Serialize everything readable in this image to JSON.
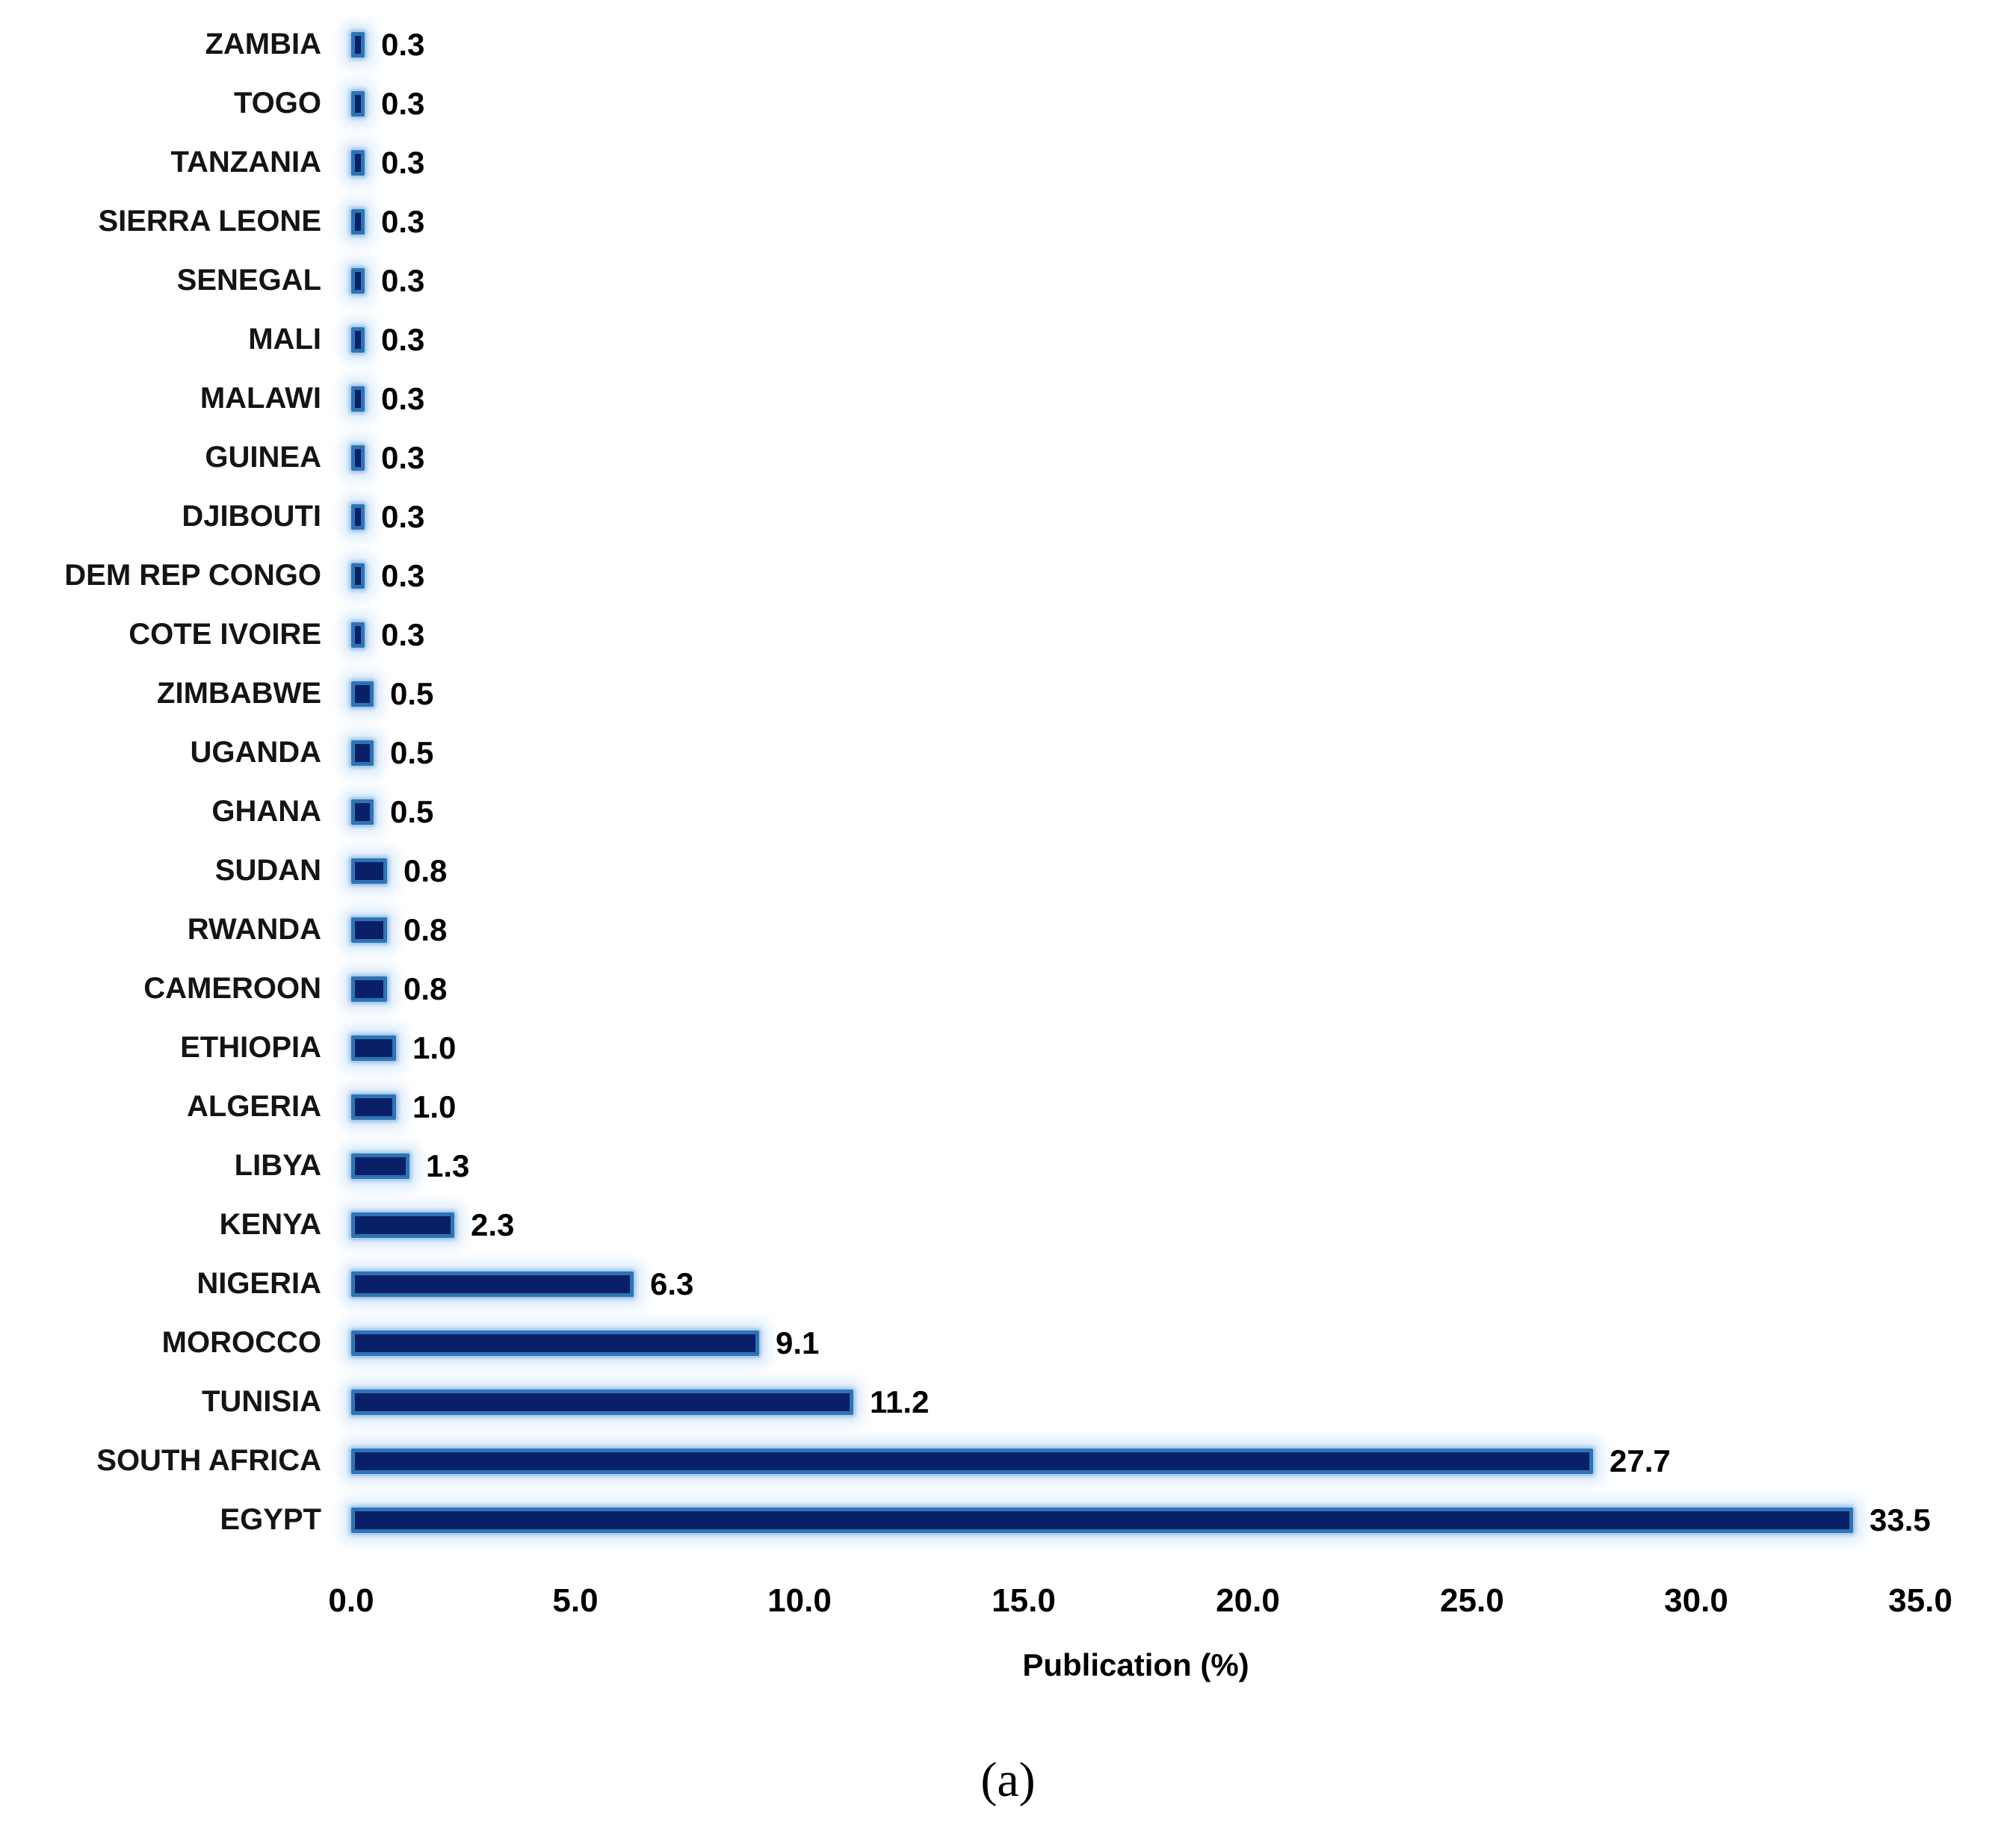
{
  "caption": "(a)",
  "chart_data": {
    "type": "bar",
    "orientation": "horizontal",
    "title": "",
    "xlabel": "Publication (%)",
    "ylabel": "",
    "xlim": [
      0,
      35
    ],
    "grid": false,
    "legend": false,
    "sort_order": "ascending values from top to bottom",
    "categories": [
      "ZAMBIA",
      "TOGO",
      "TANZANIA",
      "SIERRA LEONE",
      "SENEGAL",
      "MALI",
      "MALAWI",
      "GUINEA",
      "DJIBOUTI",
      "DEM REP CONGO",
      "COTE IVOIRE",
      "ZIMBABWE",
      "UGANDA",
      "GHANA",
      "SUDAN",
      "RWANDA",
      "CAMEROON",
      "ETHIOPIA",
      "ALGERIA",
      "LIBYA",
      "KENYA",
      "NIGERIA",
      "MOROCCO",
      "TUNISIA",
      "SOUTH AFRICA",
      "EGYPT"
    ],
    "values": [
      0.3,
      0.3,
      0.3,
      0.3,
      0.3,
      0.3,
      0.3,
      0.3,
      0.3,
      0.3,
      0.3,
      0.5,
      0.5,
      0.5,
      0.8,
      0.8,
      0.8,
      1.0,
      1.0,
      1.3,
      2.3,
      6.3,
      9.1,
      11.2,
      27.7,
      33.5
    ],
    "value_labels": [
      "0.3",
      "0.3",
      "0.3",
      "0.3",
      "0.3",
      "0.3",
      "0.3",
      "0.3",
      "0.3",
      "0.3",
      "0.3",
      "0.5",
      "0.5",
      "0.5",
      "0.8",
      "0.8",
      "0.8",
      "1.0",
      "1.0",
      "1.3",
      "2.3",
      "6.3",
      "9.1",
      "11.2",
      "27.7",
      "33.5"
    ],
    "x_ticks": [
      {
        "label": "0.0",
        "value": 0
      },
      {
        "label": "5.0",
        "value": 5
      },
      {
        "label": "10.0",
        "value": 10
      },
      {
        "label": "15.0",
        "value": 15
      },
      {
        "label": "20.0",
        "value": 20
      },
      {
        "label": "25.0",
        "value": 25
      },
      {
        "label": "30.0",
        "value": 30
      },
      {
        "label": "35.0",
        "value": 35
      }
    ],
    "colors": {
      "bar_fill": "#0a2066",
      "bar_edge": "#2e74b5",
      "bar_glow": "#d9eafa",
      "text": "#000000"
    }
  }
}
